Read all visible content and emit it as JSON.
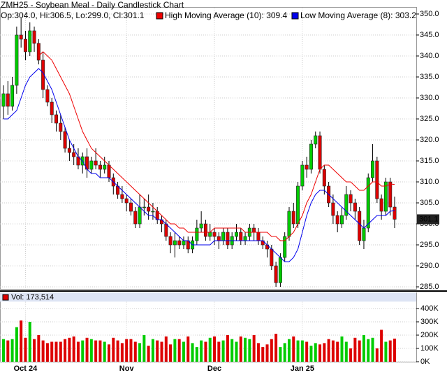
{
  "chart_data": {
    "type": "candlestick",
    "title": "ZMH25 - Soybean Meal - Daily Candlestick Chart",
    "subtitle": "Op:304.0, Hi:306.5, Lo:299.0, Cl:301.1",
    "up_color": "#00cc00",
    "down_color": "#dd0000",
    "grid": true,
    "categories": [
      null,
      null,
      null,
      null,
      null,
      "Oct 24",
      null,
      null,
      null,
      null,
      null,
      null,
      null,
      null,
      null,
      null,
      null,
      null,
      null,
      null,
      null,
      null,
      null,
      null,
      null,
      null,
      null,
      null,
      "Nov",
      null,
      null,
      null,
      null,
      null,
      null,
      null,
      null,
      null,
      null,
      null,
      null,
      null,
      null,
      null,
      null,
      null,
      null,
      null,
      "Dec",
      null,
      null,
      null,
      null,
      null,
      null,
      null,
      null,
      null,
      null,
      null,
      null,
      null,
      null,
      null,
      null,
      null,
      null,
      null,
      "Jan 25",
      null,
      null,
      null,
      null,
      null,
      null,
      null,
      null,
      null,
      null,
      null,
      null,
      null,
      null,
      null,
      null,
      null,
      null,
      null,
      null,
      null
    ],
    "open": [
      328,
      331,
      328,
      333,
      345,
      344,
      341,
      346,
      343,
      339,
      332,
      329,
      326,
      324,
      322,
      318,
      317,
      316,
      314,
      316,
      313,
      315,
      314,
      313,
      314,
      311,
      309,
      307,
      306,
      305,
      303,
      300,
      304,
      304,
      303,
      303,
      301,
      300,
      297,
      295,
      296,
      295,
      296,
      294,
      296,
      299,
      300,
      297,
      298,
      297,
      296,
      298,
      295,
      297,
      298,
      296,
      297,
      299,
      298,
      296,
      295,
      294,
      290,
      286,
      292,
      297,
      303,
      300,
      309,
      314,
      313,
      319,
      321,
      313,
      309,
      305,
      302,
      300,
      302,
      307,
      305,
      303,
      296,
      299,
      311,
      315,
      306,
      303,
      310,
      304.0
    ],
    "high": [
      333,
      334,
      335,
      347,
      349,
      346,
      348,
      347,
      344,
      341,
      333,
      330,
      327,
      326,
      323,
      320,
      319,
      318,
      317,
      318,
      316,
      318,
      315,
      316,
      315,
      312,
      310,
      309,
      307,
      306,
      304,
      307,
      306,
      307,
      305,
      304,
      302,
      301,
      298,
      298,
      297,
      297,
      297,
      297,
      301,
      303,
      301,
      300,
      299,
      298,
      299,
      299,
      298,
      300,
      299,
      298,
      300,
      300,
      299,
      297,
      296,
      295,
      291,
      293,
      298,
      304,
      305,
      310,
      315,
      316,
      320,
      322,
      322,
      314,
      310,
      307,
      303,
      304,
      309,
      308,
      306,
      304,
      301,
      312,
      319,
      316,
      307,
      311,
      311,
      306.5
    ],
    "low": [
      325,
      326,
      327,
      331,
      342,
      339,
      340,
      341,
      338,
      330,
      328,
      324,
      322,
      320,
      317,
      315,
      314,
      313,
      312,
      311,
      312,
      313,
      311,
      312,
      310,
      307,
      306,
      305,
      303,
      302,
      299,
      299,
      302,
      301,
      301,
      300,
      298,
      296,
      293,
      292,
      294,
      294,
      293,
      293,
      295,
      298,
      296,
      296,
      295,
      294,
      295,
      294,
      294,
      296,
      295,
      295,
      296,
      296,
      295,
      294,
      292,
      289,
      285,
      285,
      291,
      296,
      299,
      299,
      308,
      311,
      312,
      318,
      312,
      307,
      304,
      300,
      298,
      299,
      301,
      303,
      301,
      295,
      294,
      298,
      310,
      305,
      301,
      302,
      302,
      299.0
    ],
    "close": [
      331,
      328,
      333,
      345,
      344,
      341,
      346,
      343,
      339,
      332,
      329,
      326,
      324,
      322,
      318,
      317,
      316,
      314,
      316,
      313,
      315,
      314,
      313,
      314,
      311,
      309,
      307,
      306,
      305,
      303,
      300,
      304,
      304,
      303,
      303,
      301,
      300,
      297,
      295,
      296,
      295,
      296,
      294,
      296,
      299,
      300,
      297,
      298,
      297,
      296,
      298,
      295,
      297,
      298,
      296,
      297,
      299,
      298,
      296,
      295,
      294,
      290,
      286,
      292,
      297,
      303,
      300,
      309,
      314,
      313,
      319,
      321,
      313,
      309,
      305,
      302,
      300,
      302,
      307,
      305,
      303,
      296,
      299,
      311,
      315,
      306,
      303,
      310,
      304,
      301.1
    ],
    "series": [
      {
        "name": "High Moving Average (10): 309.4",
        "color": "#ee0000",
        "values": [
          null,
          null,
          null,
          null,
          null,
          null,
          null,
          null,
          340,
          341,
          340,
          339,
          337,
          335,
          333,
          331,
          328,
          325,
          322,
          320,
          318,
          317,
          316,
          315,
          314,
          313,
          312,
          311,
          310,
          309,
          308,
          307,
          306,
          305,
          304,
          303,
          302,
          301,
          300,
          300,
          299,
          299,
          298,
          298,
          298,
          298,
          298,
          298,
          299,
          299,
          299,
          299,
          299,
          299,
          299,
          298,
          298,
          298,
          298,
          298,
          298,
          297,
          297,
          296,
          296,
          297,
          298,
          300,
          302,
          305,
          307,
          310,
          313,
          314,
          314,
          313,
          312,
          311,
          310,
          310,
          309,
          308,
          308,
          309,
          310,
          310,
          309,
          309,
          309.5,
          309.4
        ]
      },
      {
        "name": "Low Moving Average (8): 303.2",
        "color": "#0000ee",
        "values": [
          325,
          325,
          326,
          327,
          330,
          333,
          335,
          336,
          337,
          336,
          334,
          332,
          329,
          326,
          323,
          320,
          318,
          316,
          315,
          313,
          312,
          312,
          311,
          311,
          311,
          310,
          309,
          308,
          307,
          306,
          305,
          304,
          303,
          302,
          302,
          301,
          301,
          300,
          299,
          298,
          297,
          296,
          296,
          295,
          295,
          295,
          295,
          295,
          296,
          296,
          296,
          296,
          296,
          296,
          296,
          296,
          296,
          296,
          296,
          296,
          295,
          294,
          293,
          292,
          291,
          291,
          292,
          294,
          298,
          302,
          305,
          307,
          308,
          308,
          307,
          306,
          305,
          304,
          303,
          302,
          301,
          300,
          299,
          300,
          301,
          302,
          302,
          302,
          303,
          303.2
        ]
      }
    ],
    "ylim": [
      284.5,
      351.5
    ],
    "yticks": [
      {
        "value": 285,
        "label": "285.0"
      },
      {
        "value": 290,
        "label": "290.0"
      },
      {
        "value": 295,
        "label": "295.0"
      },
      {
        "value": 300,
        "label": "300.0"
      },
      {
        "value": 305,
        "label": "305.0"
      },
      {
        "value": 310,
        "label": "310.0"
      },
      {
        "value": 315,
        "label": "315.0"
      },
      {
        "value": 320,
        "label": "320.0"
      },
      {
        "value": 325,
        "label": "325.0"
      },
      {
        "value": 330,
        "label": "330.0"
      },
      {
        "value": 335,
        "label": "335.0"
      },
      {
        "value": 340,
        "label": "340.0"
      },
      {
        "value": 345,
        "label": "345.0"
      },
      {
        "value": 350,
        "label": "350.0"
      }
    ],
    "volume": {
      "label": "Vol: 173,514",
      "values": [
        170000,
        160000,
        170000,
        260000,
        310000,
        180000,
        300000,
        170000,
        200000,
        160000,
        140000,
        150000,
        150000,
        150000,
        170000,
        180000,
        190000,
        150000,
        160000,
        180000,
        170000,
        160000,
        160000,
        150000,
        130000,
        180000,
        160000,
        140000,
        170000,
        170000,
        150000,
        140000,
        200000,
        120000,
        170000,
        160000,
        150000,
        190000,
        130000,
        170000,
        170000,
        150000,
        190000,
        140000,
        110000,
        160000,
        150000,
        180000,
        190000,
        150000,
        160000,
        200000,
        170000,
        150000,
        190000,
        180000,
        170000,
        200000,
        140000,
        110000,
        130000,
        170000,
        210000,
        110000,
        140000,
        170000,
        190000,
        160000,
        160000,
        150000,
        120000,
        140000,
        130000,
        140000,
        170000,
        160000,
        150000,
        190000,
        150000,
        100000,
        180000,
        160000,
        200000,
        170000,
        180000,
        100000,
        240000,
        150000,
        160000,
        173514
      ],
      "ylim": [
        0,
        450000
      ],
      "yticks": [
        {
          "value": 0,
          "label": "0K"
        },
        {
          "value": 100000,
          "label": "100K"
        },
        {
          "value": 200000,
          "label": "200K"
        },
        {
          "value": 300000,
          "label": "300K"
        },
        {
          "value": 400000,
          "label": "400K"
        }
      ]
    }
  }
}
